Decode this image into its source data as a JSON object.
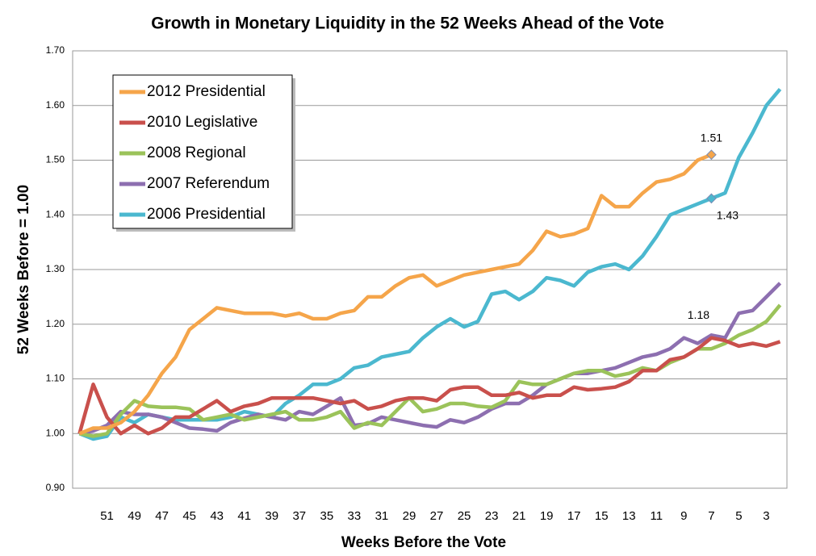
{
  "chart_data": {
    "type": "line",
    "title": "Growth in Monetary Liquidity in the 52 Weeks Ahead of the Vote",
    "x_label": "Weeks Before the Vote",
    "y_label": "52 Weeks Before = 1.00",
    "categories": [
      null,
      null,
      51,
      null,
      49,
      null,
      47,
      null,
      45,
      null,
      43,
      null,
      41,
      null,
      39,
      null,
      37,
      null,
      35,
      null,
      33,
      null,
      31,
      null,
      29,
      null,
      27,
      null,
      25,
      null,
      23,
      null,
      21,
      null,
      19,
      null,
      17,
      null,
      15,
      null,
      13,
      null,
      11,
      null,
      9,
      null,
      7,
      null,
      5,
      null,
      3,
      null
    ],
    "ylim": [
      0.9,
      1.7
    ],
    "yticks": [
      {
        "value": 0.9,
        "label": "0.90"
      },
      {
        "value": 1.0,
        "label": "1.00"
      },
      {
        "value": 1.1,
        "label": "1.10"
      },
      {
        "value": 1.2,
        "label": "1.20"
      },
      {
        "value": 1.3,
        "label": "1.30"
      },
      {
        "value": 1.4,
        "label": "1.40"
      },
      {
        "value": 1.5,
        "label": "1.50"
      },
      {
        "value": 1.6,
        "label": "1.60"
      },
      {
        "value": 1.7,
        "label": "1.70"
      }
    ],
    "grid": true,
    "legend": "upper left",
    "series": [
      {
        "name": "2012 Presidential",
        "color": "#f5a54a",
        "values": [
          1.0,
          1.01,
          1.01,
          1.02,
          1.04,
          1.07,
          1.11,
          1.14,
          1.19,
          1.21,
          1.23,
          1.225,
          1.22,
          1.22,
          1.22,
          1.215,
          1.22,
          1.21,
          1.21,
          1.22,
          1.225,
          1.25,
          1.25,
          1.27,
          1.285,
          1.29,
          1.27,
          1.28,
          1.29,
          1.295,
          1.3,
          1.305,
          1.31,
          1.335,
          1.37,
          1.36,
          1.365,
          1.375,
          1.435,
          1.415,
          1.415,
          1.44,
          1.46,
          1.465,
          1.475,
          1.5,
          1.51,
          null,
          null,
          null,
          null,
          null
        ]
      },
      {
        "name": "2010 Legislative",
        "color": "#c9504c",
        "values": [
          1.0,
          1.09,
          1.03,
          1.0,
          1.015,
          1.0,
          1.01,
          1.03,
          1.03,
          1.045,
          1.06,
          1.04,
          1.05,
          1.055,
          1.065,
          1.065,
          1.065,
          1.065,
          1.06,
          1.055,
          1.06,
          1.045,
          1.05,
          1.06,
          1.065,
          1.065,
          1.06,
          1.08,
          1.085,
          1.085,
          1.07,
          1.07,
          1.075,
          1.065,
          1.07,
          1.07,
          1.085,
          1.08,
          1.082,
          1.085,
          1.095,
          1.115,
          1.115,
          1.135,
          1.14,
          1.155,
          1.175,
          1.17,
          1.16,
          1.165,
          1.16,
          1.168
        ]
      },
      {
        "name": "2008 Regional",
        "color": "#9bc35a",
        "values": [
          1.0,
          0.995,
          1.0,
          1.035,
          1.06,
          1.05,
          1.048,
          1.048,
          1.045,
          1.025,
          1.03,
          1.035,
          1.025,
          1.03,
          1.035,
          1.04,
          1.025,
          1.025,
          1.03,
          1.04,
          1.01,
          1.02,
          1.015,
          1.04,
          1.065,
          1.04,
          1.045,
          1.055,
          1.055,
          1.05,
          1.048,
          1.06,
          1.095,
          1.09,
          1.09,
          1.1,
          1.11,
          1.115,
          1.115,
          1.105,
          1.11,
          1.12,
          1.115,
          1.13,
          1.14,
          1.155,
          1.155,
          1.165,
          1.18,
          1.19,
          1.205,
          1.235
        ]
      },
      {
        "name": "2007 Referendum",
        "color": "#8d6fb0",
        "values": [
          1.0,
          1.005,
          1.015,
          1.04,
          1.035,
          1.035,
          1.03,
          1.02,
          1.01,
          1.008,
          1.005,
          1.02,
          1.028,
          1.035,
          1.03,
          1.025,
          1.04,
          1.035,
          1.05,
          1.065,
          1.015,
          1.018,
          1.03,
          1.025,
          1.02,
          1.015,
          1.012,
          1.025,
          1.02,
          1.03,
          1.045,
          1.055,
          1.055,
          1.07,
          1.09,
          1.1,
          1.11,
          1.11,
          1.115,
          1.12,
          1.13,
          1.14,
          1.145,
          1.155,
          1.175,
          1.165,
          1.18,
          1.175,
          1.22,
          1.225,
          1.25,
          1.275
        ]
      },
      {
        "name": "2006 Presidential",
        "color": "#4bb8cf",
        "values": [
          1.0,
          0.99,
          0.995,
          1.03,
          1.02,
          1.035,
          1.03,
          1.025,
          1.025,
          1.025,
          1.025,
          1.03,
          1.04,
          1.035,
          1.03,
          1.055,
          1.07,
          1.09,
          1.09,
          1.1,
          1.12,
          1.125,
          1.14,
          1.145,
          1.15,
          1.175,
          1.195,
          1.21,
          1.195,
          1.205,
          1.255,
          1.26,
          1.245,
          1.26,
          1.285,
          1.28,
          1.27,
          1.295,
          1.305,
          1.31,
          1.3,
          1.325,
          1.36,
          1.4,
          1.41,
          1.42,
          1.43,
          1.44,
          1.505,
          1.55,
          1.6,
          1.63
        ]
      }
    ],
    "annotations": [
      "1.51",
      "1.43",
      "1.18"
    ]
  }
}
